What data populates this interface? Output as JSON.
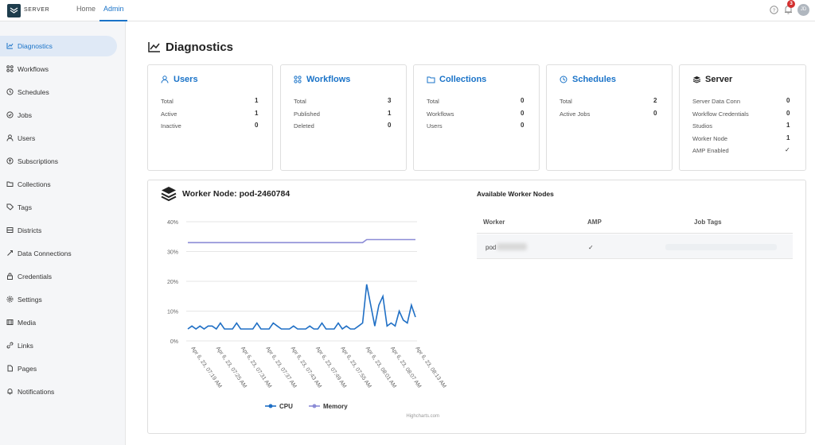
{
  "header": {
    "logo_text": "SERVER",
    "nav": [
      {
        "label": "Home"
      },
      {
        "label": "Admin"
      }
    ],
    "notification_count": "3",
    "avatar_initials": "JD",
    "accent_color": "#1a73c8"
  },
  "sidebar": {
    "items": [
      {
        "label": "Diagnostics",
        "icon": "chart-line-icon",
        "active": true
      },
      {
        "label": "Workflows",
        "icon": "workflow-icon"
      },
      {
        "label": "Schedules",
        "icon": "schedule-icon"
      },
      {
        "label": "Jobs",
        "icon": "jobs-icon"
      },
      {
        "label": "Users",
        "icon": "user-icon"
      },
      {
        "label": "Subscriptions",
        "icon": "subscription-icon"
      },
      {
        "label": "Collections",
        "icon": "folder-icon"
      },
      {
        "label": "Tags",
        "icon": "tag-icon"
      },
      {
        "label": "Districts",
        "icon": "district-icon"
      },
      {
        "label": "Data Connections",
        "icon": "data-connection-icon"
      },
      {
        "label": "Credentials",
        "icon": "credential-icon"
      },
      {
        "label": "Settings",
        "icon": "gear-icon"
      },
      {
        "label": "Media",
        "icon": "media-icon"
      },
      {
        "label": "Links",
        "icon": "link-icon"
      },
      {
        "label": "Pages",
        "icon": "page-icon"
      },
      {
        "label": "Notifications",
        "icon": "bell-icon"
      }
    ]
  },
  "page": {
    "title": "Diagnostics"
  },
  "cards": {
    "users": {
      "title": "Users",
      "rows": [
        {
          "label": "Total",
          "value": "1"
        },
        {
          "label": "Active",
          "value": "1"
        },
        {
          "label": "Inactive",
          "value": "0"
        }
      ]
    },
    "workflows": {
      "title": "Workflows",
      "rows": [
        {
          "label": "Total",
          "value": "3"
        },
        {
          "label": "Published",
          "value": "1"
        },
        {
          "label": "Deleted",
          "value": "0"
        }
      ]
    },
    "collections": {
      "title": "Collections",
      "rows": [
        {
          "label": "Total",
          "value": "0"
        },
        {
          "label": "Workflows",
          "value": "0"
        },
        {
          "label": "Users",
          "value": "0"
        }
      ]
    },
    "schedules": {
      "title": "Schedules",
      "rows": [
        {
          "label": "Total",
          "value": "2"
        },
        {
          "label": "Active Jobs",
          "value": "0"
        }
      ]
    },
    "server": {
      "title": "Server",
      "rows": [
        {
          "label": "Server Data Conn",
          "value": "0"
        },
        {
          "label": "Workflow Credentials",
          "value": "0"
        },
        {
          "label": "Studios",
          "value": "1"
        },
        {
          "label": "Worker Node",
          "value": "1"
        },
        {
          "label": "AMP Enabled",
          "value": "✓"
        }
      ]
    }
  },
  "worker": {
    "title": "Worker Node: pod-2460784",
    "available_title": "Available Worker Nodes",
    "table": {
      "headers": [
        "Worker",
        "AMP",
        "Job Tags"
      ],
      "rows": [
        {
          "worker": "pod",
          "amp": "✓",
          "job_tags": ""
        }
      ]
    }
  },
  "chart_data": {
    "type": "line",
    "title": "",
    "xlabel": "",
    "ylabel": "",
    "ylim": [
      0,
      40
    ],
    "y_ticks": [
      "0%",
      "10%",
      "20%",
      "30%",
      "40%"
    ],
    "x_tick_labels": [
      "Apr 6, 23, 07:19 AM",
      "Apr 6, 23, 07:25 AM",
      "Apr 6, 23, 07:31 AM",
      "Apr 6, 23, 07:37 AM",
      "Apr 6, 23, 07:43 AM",
      "Apr 6, 23, 07:49 AM",
      "Apr 6, 23, 07:55 AM",
      "Apr 6, 23, 08:01 AM",
      "Apr 6, 23, 08:07 AM",
      "Apr 6, 23, 08:13 AM"
    ],
    "series": [
      {
        "name": "CPU",
        "color": "#1f6fc5",
        "values": [
          4,
          5,
          4,
          5,
          4,
          5,
          5,
          4,
          6,
          4,
          4,
          4,
          6,
          4,
          4,
          4,
          4,
          6,
          4,
          4,
          4,
          6,
          5,
          4,
          4,
          4,
          5,
          4,
          4,
          4,
          5,
          4,
          4,
          6,
          4,
          4,
          4,
          6,
          4,
          5,
          4,
          4,
          5,
          6,
          19,
          12,
          5,
          12,
          15,
          5,
          6,
          5,
          10,
          7,
          6,
          12,
          8
        ]
      },
      {
        "name": "Memory",
        "color": "#8c8cd6",
        "values": [
          33,
          33,
          33,
          33,
          33,
          33,
          33,
          33,
          33,
          33,
          33,
          33,
          33,
          33,
          33,
          33,
          33,
          33,
          33,
          33,
          33,
          33,
          33,
          33,
          33,
          33,
          33,
          33,
          33,
          33,
          33,
          33,
          33,
          33,
          33,
          33,
          33,
          33,
          33,
          33,
          33,
          33,
          33,
          33,
          34,
          34,
          34,
          34,
          34,
          34,
          34,
          34,
          34,
          34,
          34,
          34,
          34
        ]
      }
    ],
    "legend": "bottom",
    "credit": "Highcharts.com"
  }
}
